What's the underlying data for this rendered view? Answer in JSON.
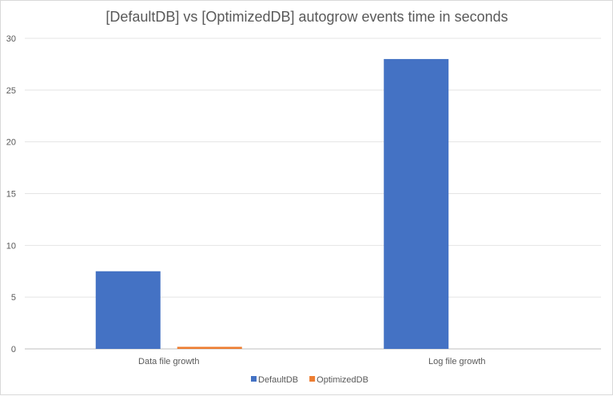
{
  "chart_data": {
    "type": "bar",
    "title": "[DefaultDB] vs [OptimizedDB] autogrow events time in seconds",
    "categories": [
      "Data file growth",
      "Log file growth"
    ],
    "series": [
      {
        "name": "DefaultDB",
        "values": [
          7.5,
          28
        ],
        "color": "#4472C4"
      },
      {
        "name": "OptimizedDB",
        "values": [
          0.2,
          0
        ],
        "color": "#ED7D31"
      }
    ],
    "ylim": [
      0,
      30
    ],
    "yticks": [
      0,
      5,
      10,
      15,
      20,
      25,
      30
    ],
    "grid": true,
    "legend_position": "bottom"
  }
}
